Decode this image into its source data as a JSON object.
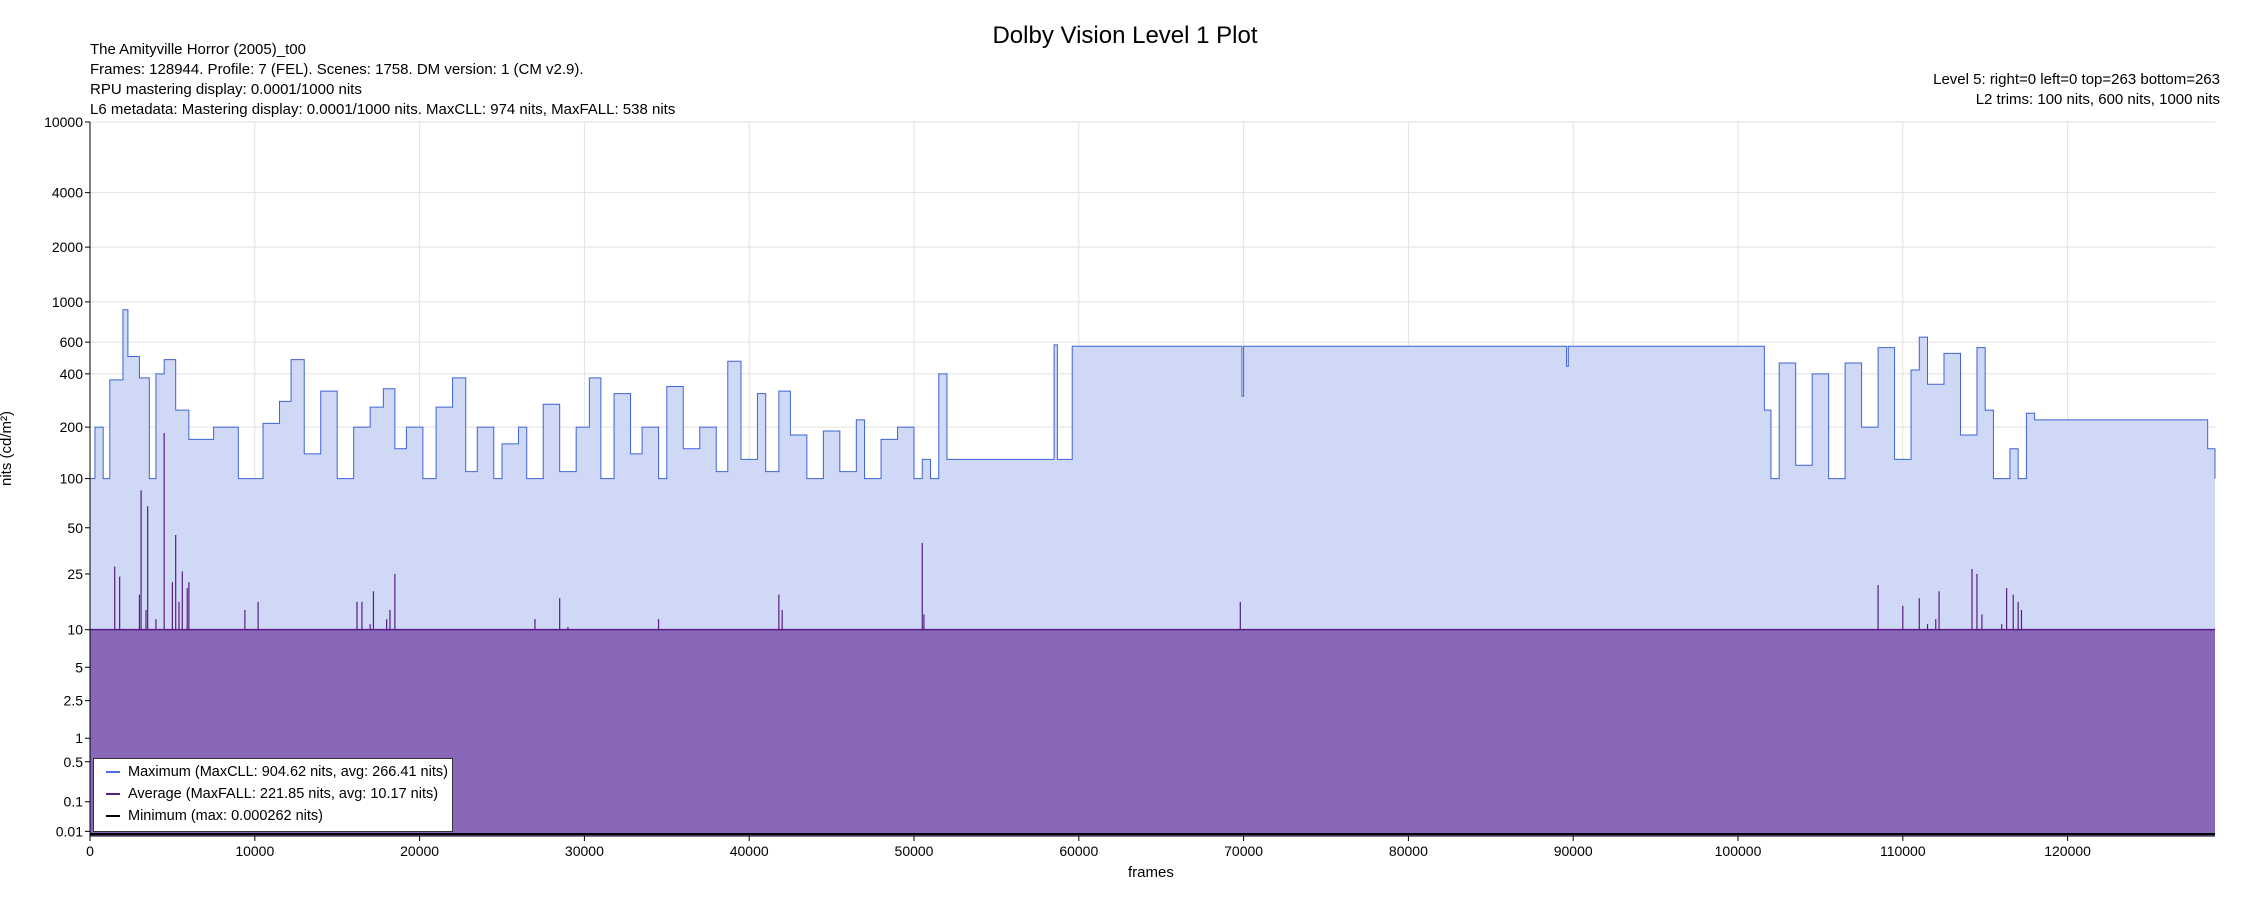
{
  "header": {
    "title": "Dolby Vision Level 1 Plot",
    "info_left": [
      "The Amityville Horror (2005)_t00",
      "Frames: 128944. Profile: 7 (FEL). Scenes: 1758. DM version: 1 (CM v2.9).",
      "RPU mastering display: 0.0001/1000 nits",
      "L6 metadata: Mastering display: 0.0001/1000 nits. MaxCLL: 974 nits, MaxFALL: 538 nits"
    ],
    "info_right": [
      "Level 5: right=0 left=0 top=263 bottom=263",
      "L2 trims: 100 nits, 600 nits, 1000 nits"
    ]
  },
  "legend": {
    "items": [
      {
        "label": "Maximum (MaxCLL: 904.62 nits, avg: 266.41 nits)",
        "color": "#4a6fe0"
      },
      {
        "label": "Average (MaxFALL: 221.85 nits, avg: 10.17 nits)",
        "color": "#5a1b86"
      },
      {
        "label": "Minimum (max: 0.000262 nits)",
        "color": "#000000"
      }
    ]
  },
  "colors": {
    "max_line": "#3f63d8",
    "max_fill": "#cfd8f5",
    "avg_line": "#5a1b86",
    "avg_fill": "#8a68b8",
    "min_line": "#000000",
    "grid": "#e2e2e2"
  },
  "chart_data": {
    "type": "area",
    "title": "Dolby Vision Level 1 Plot",
    "xlabel": "frames",
    "ylabel": "nits (cd/m²)",
    "xlim": [
      0,
      128944
    ],
    "ylim": [
      0.005,
      10000
    ],
    "yscale": "pq",
    "grid": true,
    "legend_position": "bottom-left",
    "x_ticks": [
      0,
      10000,
      20000,
      30000,
      40000,
      50000,
      60000,
      70000,
      80000,
      90000,
      100000,
      110000,
      120000
    ],
    "y_ticks": [
      0.01,
      0.1,
      0.5,
      1,
      2.5,
      5,
      10,
      25,
      50,
      100,
      200,
      400,
      600,
      1000,
      2000,
      4000,
      10000
    ],
    "y_tick_labels": [
      "0.01",
      "0.1",
      "0.5",
      "1",
      "2.5",
      "5",
      "10",
      "25",
      "50",
      "100",
      "200",
      "400",
      "600",
      "1000",
      "2000",
      "4000",
      "10000"
    ],
    "series": [
      {
        "name": "Maximum (MaxCLL: 904.62 nits, avg: 266.41 nits)",
        "kind": "max",
        "points": [
          [
            0,
            100
          ],
          [
            300,
            200
          ],
          [
            800,
            100
          ],
          [
            1200,
            370
          ],
          [
            2000,
            905
          ],
          [
            2300,
            500
          ],
          [
            3000,
            380
          ],
          [
            3600,
            100
          ],
          [
            4000,
            400
          ],
          [
            4500,
            480
          ],
          [
            5200,
            250
          ],
          [
            6000,
            170
          ],
          [
            7500,
            200
          ],
          [
            9000,
            100
          ],
          [
            10500,
            210
          ],
          [
            11500,
            280
          ],
          [
            12200,
            480
          ],
          [
            13000,
            140
          ],
          [
            14000,
            320
          ],
          [
            15000,
            100
          ],
          [
            16000,
            200
          ],
          [
            17000,
            260
          ],
          [
            17800,
            330
          ],
          [
            18500,
            150
          ],
          [
            19200,
            200
          ],
          [
            20200,
            100
          ],
          [
            21000,
            260
          ],
          [
            22000,
            380
          ],
          [
            22800,
            110
          ],
          [
            23500,
            200
          ],
          [
            24500,
            100
          ],
          [
            25000,
            160
          ],
          [
            26000,
            200
          ],
          [
            26500,
            100
          ],
          [
            27500,
            270
          ],
          [
            28500,
            110
          ],
          [
            29500,
            200
          ],
          [
            30300,
            380
          ],
          [
            31000,
            100
          ],
          [
            31800,
            310
          ],
          [
            32800,
            140
          ],
          [
            33500,
            200
          ],
          [
            34500,
            100
          ],
          [
            35000,
            340
          ],
          [
            36000,
            150
          ],
          [
            37000,
            200
          ],
          [
            38000,
            110
          ],
          [
            38700,
            470
          ],
          [
            39500,
            130
          ],
          [
            40500,
            310
          ],
          [
            41000,
            110
          ],
          [
            41800,
            320
          ],
          [
            42500,
            180
          ],
          [
            43500,
            100
          ],
          [
            44500,
            190
          ],
          [
            45500,
            110
          ],
          [
            46500,
            220
          ],
          [
            47000,
            100
          ],
          [
            48000,
            170
          ],
          [
            49000,
            200
          ],
          [
            50000,
            100
          ],
          [
            50500,
            130
          ],
          [
            51000,
            100
          ],
          [
            51500,
            400
          ],
          [
            52000,
            130
          ],
          [
            58000,
            130
          ],
          [
            58500,
            580
          ],
          [
            58700,
            130
          ],
          [
            59500,
            130
          ],
          [
            59600,
            570
          ],
          [
            69800,
            570
          ],
          [
            69900,
            300
          ],
          [
            70000,
            570
          ],
          [
            89500,
            570
          ],
          [
            89600,
            440
          ],
          [
            89700,
            570
          ],
          [
            101500,
            570
          ],
          [
            101600,
            250
          ],
          [
            102000,
            100
          ],
          [
            102500,
            460
          ],
          [
            103500,
            120
          ],
          [
            104500,
            400
          ],
          [
            105500,
            100
          ],
          [
            106500,
            460
          ],
          [
            107500,
            200
          ],
          [
            108500,
            560
          ],
          [
            109500,
            130
          ],
          [
            110500,
            420
          ],
          [
            111000,
            640
          ],
          [
            111500,
            350
          ],
          [
            112500,
            520
          ],
          [
            113500,
            180
          ],
          [
            114500,
            560
          ],
          [
            115000,
            250
          ],
          [
            115500,
            100
          ],
          [
            116500,
            150
          ],
          [
            117000,
            100
          ],
          [
            117500,
            240
          ],
          [
            118000,
            220
          ],
          [
            128400,
            220
          ],
          [
            128500,
            150
          ],
          [
            128944,
            100
          ]
        ]
      },
      {
        "name": "Average (MaxFALL: 221.85 nits, avg: 10.17 nits)",
        "kind": "avg",
        "baseline": 10,
        "spikes": [
          [
            1500,
            28
          ],
          [
            1800,
            24
          ],
          [
            3000,
            18
          ],
          [
            3100,
            85
          ],
          [
            3400,
            14
          ],
          [
            3500,
            68
          ],
          [
            4000,
            12
          ],
          [
            4500,
            185
          ],
          [
            5000,
            22
          ],
          [
            5200,
            45
          ],
          [
            5400,
            16
          ],
          [
            5600,
            26
          ],
          [
            5900,
            20
          ],
          [
            6000,
            22
          ],
          [
            9400,
            14
          ],
          [
            10200,
            16
          ],
          [
            16200,
            16
          ],
          [
            16500,
            16
          ],
          [
            17000,
            11
          ],
          [
            17200,
            19
          ],
          [
            18000,
            12
          ],
          [
            18200,
            14
          ],
          [
            18500,
            25
          ],
          [
            27000,
            12
          ],
          [
            28500,
            17
          ],
          [
            29000,
            10.5
          ],
          [
            34500,
            12
          ],
          [
            41800,
            18
          ],
          [
            42000,
            14
          ],
          [
            50500,
            40
          ],
          [
            50600,
            13
          ],
          [
            69800,
            16
          ],
          [
            108500,
            21
          ],
          [
            110000,
            15
          ],
          [
            111000,
            17
          ],
          [
            111500,
            11
          ],
          [
            112000,
            12
          ],
          [
            112200,
            19
          ],
          [
            114200,
            27
          ],
          [
            114500,
            25
          ],
          [
            114800,
            13
          ],
          [
            116000,
            11
          ],
          [
            116300,
            20
          ],
          [
            116700,
            18
          ],
          [
            117000,
            16
          ],
          [
            117200,
            14
          ]
        ]
      },
      {
        "name": "Minimum (max: 0.000262 nits)",
        "kind": "min",
        "points": [
          [
            0,
            0.005
          ],
          [
            128944,
            0.005
          ]
        ]
      }
    ]
  }
}
